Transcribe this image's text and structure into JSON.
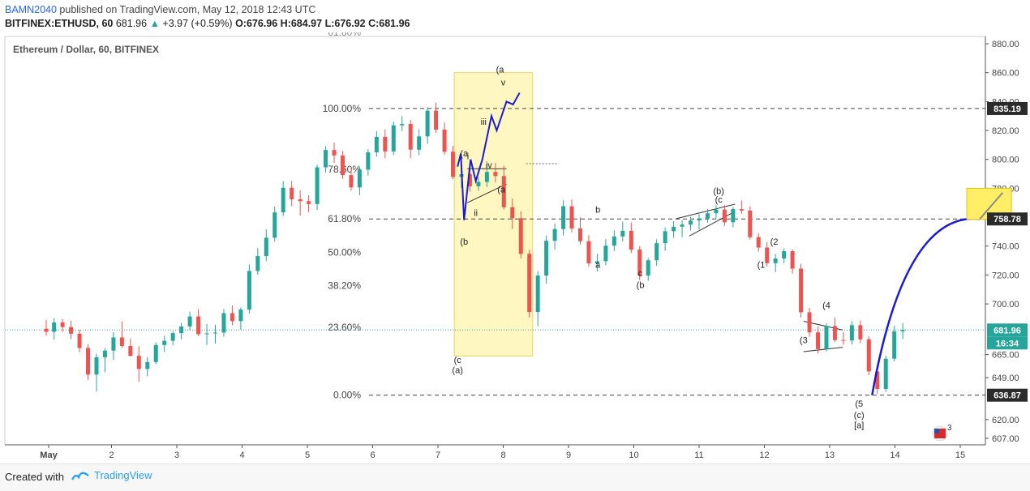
{
  "header": {
    "author": "BAMN2040",
    "publish_text": "published on TradingView.com, May 12, 2018 12:43 UTC",
    "symbol": "BITFINEX:ETHUSD, 60",
    "price": "681.96",
    "change": "+3.97 (+0.59%)",
    "ohlc": "O:676.96 H:684.97 L:676.92 C:681.96"
  },
  "footer": {
    "created_with": "Created with",
    "brand": "TradingView"
  },
  "colors": {
    "up": "#26a69a",
    "down": "#ef5350",
    "wave": "#1a1ad6",
    "zone": "#fff7c2",
    "target": "#ffee66",
    "level": "#444444",
    "price_line": "#26a69a"
  },
  "chart_data": {
    "type": "candlestick",
    "title": "Ethereum / Dollar, 60, BITFINEX",
    "x_axis": {
      "labels": [
        "May",
        "2",
        "3",
        "4",
        "5",
        "6",
        "7",
        "8",
        "9",
        "10",
        "11",
        "12",
        "13",
        "14",
        "15"
      ]
    },
    "y_axis": {
      "ticks": [
        880.0,
        860.0,
        840.0,
        820.0,
        800.0,
        780.0,
        740.0,
        720.0,
        700.0,
        665.0,
        649.0,
        620.0,
        607.0
      ],
      "tick_labels": [
        "880.00",
        "860.00",
        "840.00",
        "820.00",
        "800.00",
        "780.00",
        "740.00",
        "720.00",
        "700.00",
        "665.00",
        "649.00",
        "620.00",
        "607.00"
      ],
      "range": [
        600,
        885
      ],
      "position": "right"
    },
    "price_labels": [
      {
        "value": 835.19,
        "label": "835.19",
        "style": "dark"
      },
      {
        "value": 758.78,
        "label": "758.78",
        "style": "dark"
      },
      {
        "value": 681.96,
        "label": "681.96",
        "style": "green"
      },
      {
        "value": 636.87,
        "label": "636.87",
        "style": "dark"
      }
    ],
    "countdown": "16:34",
    "fib_levels": [
      {
        "label": "100.00%",
        "price": 835.19,
        "dashed": true
      },
      {
        "label": "78.60%",
        "price": 0
      },
      {
        "label": "61.80%",
        "price": 758.78,
        "dashed": true
      },
      {
        "label": "50.00%",
        "price": 0
      },
      {
        "label": "38.20%",
        "price": 0
      },
      {
        "label": "23.60%",
        "price": 0
      },
      {
        "label": "0.00%",
        "price": 636.87,
        "dashed": true
      }
    ],
    "fib_partial_top_label": "61.80%",
    "current_price": 681.96,
    "candles": [
      [
        0.0,
        682.8,
        688.9,
        678.2,
        680.7
      ],
      [
        0.12,
        680.7,
        690.1,
        675.3,
        687.2
      ],
      [
        0.25,
        687.2,
        689.4,
        680.7,
        684.0
      ],
      [
        0.38,
        684.0,
        688.4,
        675.7,
        679.4
      ],
      [
        0.51,
        679.4,
        682.2,
        666.6,
        669.5
      ],
      [
        0.64,
        669.5,
        672.1,
        647.4,
        651.1
      ],
      [
        0.77,
        651.1,
        665.4,
        639.4,
        663.1
      ],
      [
        0.9,
        663.1,
        669.4,
        652.7,
        667.7
      ],
      [
        1.03,
        667.7,
        680.4,
        661.2,
        676.8
      ],
      [
        1.16,
        676.8,
        687.8,
        669.6,
        670.9
      ],
      [
        1.29,
        670.9,
        676.1,
        663.6,
        664.1
      ],
      [
        1.42,
        664.1,
        670.7,
        646.2,
        655.0
      ],
      [
        1.55,
        655.0,
        663.2,
        649.9,
        659.8
      ],
      [
        1.68,
        659.8,
        673.4,
        658.2,
        671.6
      ],
      [
        1.81,
        671.6,
        678.0,
        666.7,
        674.5
      ],
      [
        1.94,
        674.5,
        680.9,
        671.4,
        679.8
      ],
      [
        2.07,
        679.8,
        686.9,
        675.5,
        684.4
      ],
      [
        2.2,
        684.4,
        694.6,
        681.5,
        691.3
      ],
      [
        2.33,
        691.3,
        696.4,
        677.8,
        679.0
      ],
      [
        2.46,
        679.0,
        686.2,
        671.6,
        679.6
      ],
      [
        2.59,
        679.6,
        685.6,
        672.7,
        680.2
      ],
      [
        2.72,
        680.2,
        696.6,
        677.4,
        693.6
      ],
      [
        2.85,
        693.6,
        698.9,
        685.2,
        688.1
      ],
      [
        2.98,
        688.1,
        697.6,
        682.2,
        696.1
      ],
      [
        3.11,
        696.1,
        727.3,
        693.4,
        722.8
      ],
      [
        3.24,
        722.8,
        738.6,
        720.2,
        733.1
      ],
      [
        3.37,
        733.1,
        751.5,
        729.7,
        745.8
      ],
      [
        3.5,
        745.8,
        767.3,
        743.2,
        763.3
      ],
      [
        3.63,
        763.3,
        784.9,
        760.8,
        780.4
      ],
      [
        3.76,
        780.4,
        785.1,
        767.7,
        772.4
      ],
      [
        3.89,
        772.4,
        778.6,
        761.1,
        771.1
      ],
      [
        4.02,
        771.1,
        775.1,
        763.4,
        769.1
      ],
      [
        4.15,
        769.1,
        796.3,
        765.1,
        794.5
      ],
      [
        4.28,
        794.5,
        808.9,
        790.9,
        806.5
      ],
      [
        4.41,
        806.5,
        811.6,
        797.6,
        802.7
      ],
      [
        4.54,
        802.7,
        805.8,
        786.6,
        789.1
      ],
      [
        4.67,
        789.1,
        793.7,
        778.3,
        780.6
      ],
      [
        4.8,
        780.6,
        795.1,
        775.3,
        792.9
      ],
      [
        4.93,
        792.9,
        807.1,
        788.7,
        804.9
      ],
      [
        5.06,
        804.9,
        819.7,
        801.9,
        815.6
      ],
      [
        5.19,
        815.6,
        820.8,
        800.8,
        805.5
      ],
      [
        5.32,
        805.5,
        826.2,
        803.1,
        823.6
      ],
      [
        5.45,
        823.6,
        829.9,
        819.5,
        824.5
      ],
      [
        5.58,
        824.5,
        827.3,
        800.9,
        806.7
      ],
      [
        5.71,
        806.7,
        820.8,
        802.9,
        815.9
      ],
      [
        5.84,
        815.9,
        836.1,
        810.7,
        833.7
      ],
      [
        5.97,
        833.7,
        839.4,
        818.3,
        820.6
      ],
      [
        6.1,
        820.6,
        825.5,
        803.3,
        805.3
      ],
      [
        6.23,
        805.3,
        809.3,
        786.3,
        787.9
      ],
      [
        6.36,
        787.9,
        796.1,
        780.2,
        789.7
      ],
      [
        6.49,
        789.7,
        792.3,
        777.7,
        781.4
      ],
      [
        6.62,
        781.4,
        787.8,
        778.3,
        784.4
      ],
      [
        6.75,
        784.4,
        796.6,
        780.9,
        791.3
      ],
      [
        6.88,
        791.3,
        797.6,
        784.2,
        788.5
      ],
      [
        7.01,
        788.5,
        795.7,
        765.4,
        766.9
      ],
      [
        7.14,
        766.9,
        772.9,
        751.8,
        759.3
      ],
      [
        7.27,
        759.3,
        764.0,
        731.5,
        734.7
      ],
      [
        7.4,
        734.7,
        737.5,
        690.6,
        694.4
      ],
      [
        7.53,
        694.4,
        722.6,
        684.6,
        719.6
      ],
      [
        7.66,
        719.6,
        747.2,
        714.1,
        743.7
      ],
      [
        7.79,
        743.7,
        755.6,
        737.7,
        751.8
      ],
      [
        7.92,
        751.8,
        771.6,
        747.3,
        767.6
      ],
      [
        8.05,
        767.6,
        772.2,
        749.5,
        752.2
      ],
      [
        8.18,
        752.2,
        759.9,
        741.0,
        743.4
      ],
      [
        8.31,
        743.4,
        747.6,
        725.8,
        728.0
      ],
      [
        8.44,
        728.0,
        734.7,
        722.4,
        729.6
      ],
      [
        8.57,
        729.6,
        744.8,
        726.8,
        740.3
      ],
      [
        8.7,
        740.3,
        750.9,
        736.6,
        746.7
      ],
      [
        8.83,
        746.7,
        756.9,
        743.3,
        750.6
      ],
      [
        8.96,
        750.6,
        756.4,
        735.2,
        737.6
      ],
      [
        9.09,
        737.6,
        740.0,
        716.4,
        719.6
      ],
      [
        9.22,
        719.6,
        731.8,
        716.0,
        730.2
      ],
      [
        9.35,
        730.2,
        744.7,
        726.4,
        742.0
      ],
      [
        9.48,
        742.0,
        752.9,
        736.7,
        750.3
      ],
      [
        9.61,
        750.3,
        757.3,
        745.7,
        753.4
      ],
      [
        9.74,
        753.4,
        757.8,
        746.2,
        754.9
      ],
      [
        9.87,
        754.9,
        760.3,
        750.8,
        757.7
      ],
      [
        10.0,
        757.7,
        762.2,
        751.5,
        759.1
      ],
      [
        10.13,
        759.1,
        765.6,
        756.3,
        762.7
      ],
      [
        10.26,
        762.7,
        768.2,
        759.2,
        765.3
      ],
      [
        10.39,
        765.3,
        768.4,
        754.0,
        756.5
      ],
      [
        10.52,
        756.5,
        767.1,
        753.0,
        765.6
      ],
      [
        10.65,
        765.6,
        771.6,
        762.3,
        764.6
      ],
      [
        10.78,
        764.6,
        767.6,
        744.6,
        746.2
      ],
      [
        10.91,
        746.2,
        749.1,
        736.2,
        739.0
      ],
      [
        11.04,
        739.0,
        742.8,
        725.9,
        728.2
      ],
      [
        11.17,
        728.2,
        734.5,
        722.0,
        731.4
      ],
      [
        11.3,
        731.4,
        738.4,
        728.1,
        736.5
      ],
      [
        11.43,
        736.5,
        737.8,
        721.0,
        724.4
      ],
      [
        11.56,
        724.4,
        727.7,
        690.6,
        694.2
      ],
      [
        11.69,
        694.2,
        697.3,
        677.2,
        680.3
      ],
      [
        11.82,
        680.3,
        684.2,
        665.8,
        668.8
      ],
      [
        11.95,
        668.8,
        686.5,
        667.2,
        684.7
      ],
      [
        12.08,
        684.7,
        690.6,
        673.8,
        675.0
      ],
      [
        12.21,
        675.0,
        680.6,
        671.8,
        674.7
      ],
      [
        12.34,
        674.7,
        688.1,
        671.9,
        685.3
      ],
      [
        12.47,
        685.3,
        688.5,
        672.8,
        675.5
      ],
      [
        12.6,
        675.5,
        677.6,
        650.7,
        653.3
      ],
      [
        12.73,
        653.3,
        655.7,
        637.9,
        641.2
      ],
      [
        12.86,
        641.2,
        664.2,
        639.1,
        662.1
      ],
      [
        12.99,
        662.1,
        684.9,
        660.3,
        681.0
      ],
      [
        13.12,
        681.0,
        686.8,
        675.6,
        681.96
      ]
    ],
    "wave_labels": [
      "(a",
      "(b",
      "(c",
      "(a)",
      "(a",
      "v",
      "iii",
      "iv",
      "i",
      "ii",
      "(a",
      "b",
      "a",
      "c",
      "(b",
      "(b)",
      "(c",
      "(2",
      "(1",
      "(4",
      "(3",
      "(5",
      "(c)",
      "[a]"
    ],
    "projection": {
      "from": 636.87,
      "to": 777.0
    },
    "badge_count": "3"
  }
}
